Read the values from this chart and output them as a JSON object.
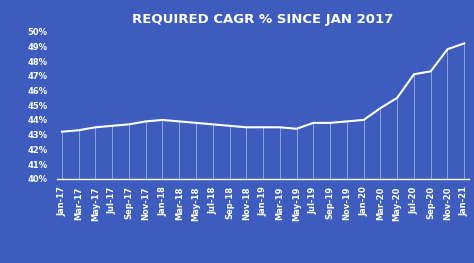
{
  "title": "REQUIRED CAGR % SINCE JAN 2017",
  "background_color": "#3d5cbe",
  "line_color": "#ffffff",
  "text_color": "#ffffff",
  "x_labels": [
    "Jan-17",
    "Mar-17",
    "May-17",
    "Jul-17",
    "Sep-17",
    "Nov-17",
    "Jan-18",
    "Mar-18",
    "May-18",
    "Jul-18",
    "Sep-18",
    "Nov-18",
    "Jan-19",
    "Mar-19",
    "May-19",
    "Jul-19",
    "Sep-19",
    "Nov-19",
    "Jan-20",
    "Mar-20",
    "May-20",
    "Jul-20",
    "Sep-20",
    "Nov-20",
    "Jan-21"
  ],
  "values": [
    43.2,
    43.3,
    43.5,
    43.6,
    43.7,
    43.9,
    44.0,
    43.9,
    43.8,
    43.7,
    43.6,
    43.5,
    43.5,
    43.5,
    43.4,
    43.8,
    43.8,
    43.9,
    44.0,
    44.8,
    45.5,
    47.1,
    47.3,
    48.8,
    49.2
  ],
  "ylim": [
    40,
    50
  ],
  "yticks": [
    40,
    41,
    42,
    43,
    44,
    45,
    46,
    47,
    48,
    49,
    50
  ],
  "title_fontsize": 9.5,
  "tick_fontsize": 6.0
}
